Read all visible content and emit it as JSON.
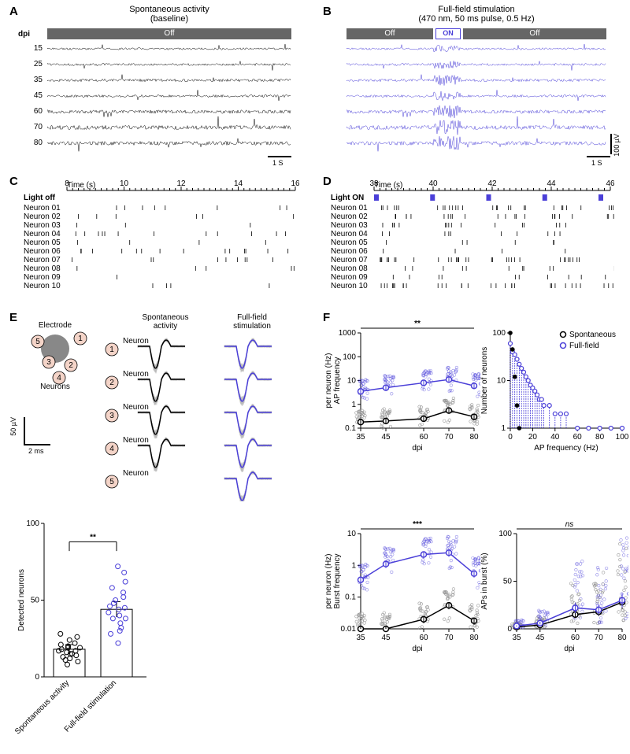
{
  "panelA": {
    "label": "A",
    "title": "Spontaneous activity",
    "subtitle": "(baseline)",
    "offLabel": "Off",
    "dpiHeader": "dpi",
    "dpi": [
      "15",
      "25",
      "35",
      "45",
      "60",
      "70",
      "80"
    ],
    "traceColor": "#000000",
    "waveAmplitudes": [
      6,
      7,
      9,
      8,
      11,
      13,
      12
    ],
    "scaleX": "1 S"
  },
  "panelB": {
    "label": "B",
    "title": "Full-field stimulation",
    "subtitle": "(470 nm, 50 ms pulse, 0.5 Hz)",
    "offLabel": "Off",
    "onLabel": "ON",
    "traceColor": "#4a3fd8",
    "waveAmplitudes": [
      6,
      7,
      9,
      8,
      11,
      13,
      12
    ],
    "scaleX": "1 S",
    "scaleY": "100 µV"
  },
  "panelC": {
    "label": "C",
    "timeLabel": "Time (s)",
    "timeTicks": [
      "8",
      "10",
      "12",
      "14",
      "16"
    ],
    "lightLabel": "Light off",
    "neurons": [
      "Neuron 01",
      "Neuron 02",
      "Neuron 03",
      "Neuron 04",
      "Neuron 05",
      "Neuron 06",
      "Neuron 07",
      "Neuron 08",
      "Neuron 09",
      "Neuron 10"
    ],
    "spikeDensity": [
      8,
      6,
      3,
      12,
      4,
      14,
      9,
      5,
      1,
      4
    ],
    "tickColor": "#000000"
  },
  "panelD": {
    "label": "D",
    "timeLabel": "Time (s)",
    "timeTicks": [
      "38",
      "40",
      "42",
      "44",
      "46"
    ],
    "lightLabel": "Light ON",
    "lightColor": "#4a3fd8",
    "neurons": [
      "Neuron 01",
      "Neuron 02",
      "Neuron 03",
      "Neuron 04",
      "Neuron 05",
      "Neuron 06",
      "Neuron 07",
      "Neuron 08",
      "Neuron 09",
      "Neuron 10"
    ],
    "spikeDensity": [
      35,
      28,
      22,
      18,
      10,
      8,
      40,
      15,
      12,
      45
    ],
    "tickColor": "#000000"
  },
  "panelE": {
    "label": "E",
    "electrodeLabel": "Electrode",
    "neuronsLabel": "Neurons",
    "neuronNumbers": [
      "1",
      "2",
      "3",
      "4",
      "5"
    ],
    "neuronPositions": [
      [
        62,
        8
      ],
      [
        50,
        42
      ],
      [
        22,
        38
      ],
      [
        35,
        58
      ],
      [
        8,
        12
      ]
    ],
    "electrodeColor": "#888888",
    "neuronFill": "#f4d4c8",
    "spontHeader": "Spontaneous\nactivity",
    "fullHeader": "Full-field\nstimulation",
    "spontColor": "#000000",
    "fullColor": "#4a3fd8",
    "scaleY": "50 µV",
    "scaleX": "2 ms",
    "barChart": {
      "ylabel": "Detected neurons",
      "yticks": [
        0,
        50,
        100
      ],
      "categories": [
        "Spontaneous\nactivity",
        "Full-field\nstimulation"
      ],
      "means": [
        18,
        44
      ],
      "sems": [
        3,
        5
      ],
      "sig": "**",
      "spontPoints": [
        8,
        10,
        12,
        14,
        15,
        16,
        17,
        18,
        19,
        20,
        21,
        22,
        24,
        26,
        28,
        15,
        17,
        19,
        13,
        11
      ],
      "fullPoints": [
        22,
        28,
        32,
        35,
        38,
        40,
        42,
        44,
        46,
        48,
        50,
        52,
        55,
        58,
        62,
        68,
        72,
        45,
        38,
        30
      ],
      "spontColor": "#000000",
      "fullColor": "#4a3fd8"
    }
  },
  "panelF": {
    "label": "F",
    "legendSpont": "Spontaneous",
    "legendFull": "Full-field",
    "spontColor": "#000000",
    "fullColor": "#4a3fd8",
    "chart1": {
      "ylabel": "AP frequency\nper neuron (Hz)",
      "xlabel": "dpi",
      "xticks": [
        35,
        45,
        60,
        70,
        80
      ],
      "yticks": [
        0.1,
        1,
        10,
        100,
        1000
      ],
      "yscale": "log",
      "sig": "**",
      "spontMeans": [
        0.18,
        0.2,
        0.25,
        0.55,
        0.3
      ],
      "fullMeans": [
        3.5,
        5.0,
        8.0,
        11.0,
        6.0
      ]
    },
    "chart2": {
      "ylabel": "Number of neurons",
      "xlabel": "AP frequency (Hz)",
      "xticks": [
        0,
        20,
        40,
        60,
        80,
        100
      ],
      "yticks": [
        1,
        10,
        100
      ],
      "yscale": "log",
      "spontHist": [
        [
          0,
          180
        ],
        [
          2,
          45
        ],
        [
          4,
          12
        ],
        [
          6,
          3
        ],
        [
          8,
          1
        ]
      ],
      "fullHist": [
        [
          0,
          60
        ],
        [
          2,
          40
        ],
        [
          4,
          35
        ],
        [
          6,
          28
        ],
        [
          8,
          22
        ],
        [
          10,
          18
        ],
        [
          12,
          15
        ],
        [
          14,
          12
        ],
        [
          16,
          10
        ],
        [
          18,
          8
        ],
        [
          20,
          7
        ],
        [
          22,
          6
        ],
        [
          24,
          5
        ],
        [
          26,
          4
        ],
        [
          28,
          4
        ],
        [
          30,
          3
        ],
        [
          35,
          3
        ],
        [
          40,
          2
        ],
        [
          45,
          2
        ],
        [
          50,
          2
        ],
        [
          60,
          1
        ],
        [
          70,
          1
        ],
        [
          80,
          1
        ],
        [
          90,
          1
        ],
        [
          100,
          1
        ]
      ]
    },
    "chart3": {
      "ylabel": "Burst frequency\nper neuron (Hz)",
      "xlabel": "dpi",
      "xticks": [
        35,
        45,
        60,
        70,
        80
      ],
      "yticks": [
        0.01,
        0.1,
        1,
        10
      ],
      "yscale": "log",
      "sig": "***",
      "spontMeans": [
        0.01,
        0.01,
        0.02,
        0.055,
        0.018
      ],
      "fullMeans": [
        0.35,
        1.1,
        2.2,
        2.5,
        0.55
      ]
    },
    "chart4": {
      "ylabel": "APs in burst (%)",
      "xlabel": "dpi",
      "xticks": [
        35,
        45,
        60,
        70,
        80
      ],
      "yticks": [
        0,
        50,
        100
      ],
      "yscale": "linear",
      "sig": "ns",
      "sigStyle": "italic",
      "spontMeans": [
        2,
        4,
        15,
        18,
        28
      ],
      "fullMeans": [
        3,
        6,
        22,
        20,
        30
      ]
    }
  }
}
